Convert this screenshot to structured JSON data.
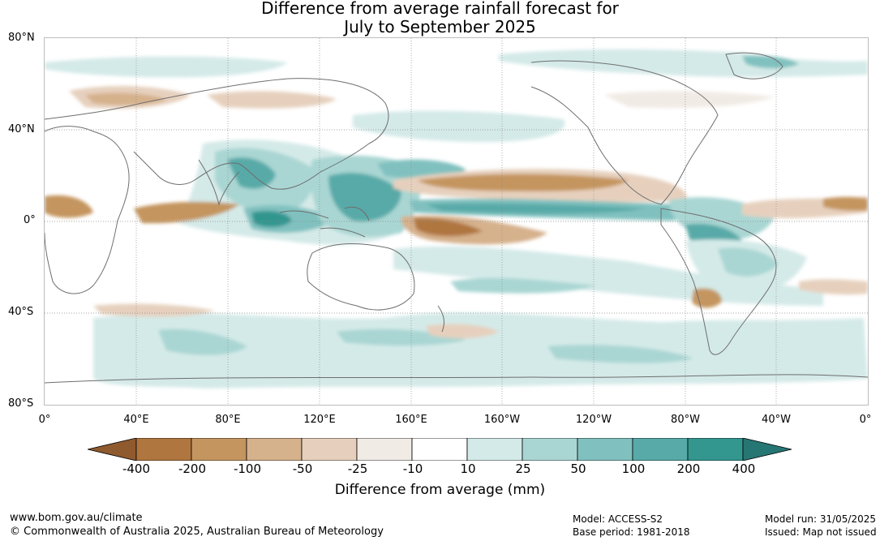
{
  "title": {
    "line1": "Difference from average rainfall forecast for",
    "line2": "July to September 2025"
  },
  "map": {
    "lat_labels": [
      "80°N",
      "40°N",
      "0°",
      "40°S",
      "80°S"
    ],
    "lon_labels": [
      "0°",
      "40°E",
      "80°E",
      "120°E",
      "160°E",
      "160°W",
      "120°W",
      "80°W",
      "40°W",
      "0°"
    ],
    "gridlines": true,
    "projection": "plate carree, 0° to 360°"
  },
  "legend": {
    "title": "Difference from average (mm)",
    "ticks": [
      "-400",
      "-200",
      "-100",
      "-50",
      "-25",
      "-10",
      "10",
      "25",
      "50",
      "100",
      "200",
      "400"
    ],
    "colors": [
      "#8f5a2e",
      "#b0763f",
      "#c4955f",
      "#d5b18c",
      "#e6d0bd",
      "#f1ebe5",
      "#ffffff",
      "#d4eae8",
      "#a9d6d3",
      "#80c1bf",
      "#58aaa8",
      "#33968f",
      "#267674"
    ]
  },
  "footer": {
    "url": "www.bom.gov.au/climate",
    "copyright": "© Commonwealth of Australia 2025, Australian Bureau of Meteorology",
    "model": "Model: ACCESS-S2",
    "base_period": "Base period: 1981-2018",
    "model_run": "Model run: 31/05/2025",
    "issued": "Issued: Map not issued"
  }
}
